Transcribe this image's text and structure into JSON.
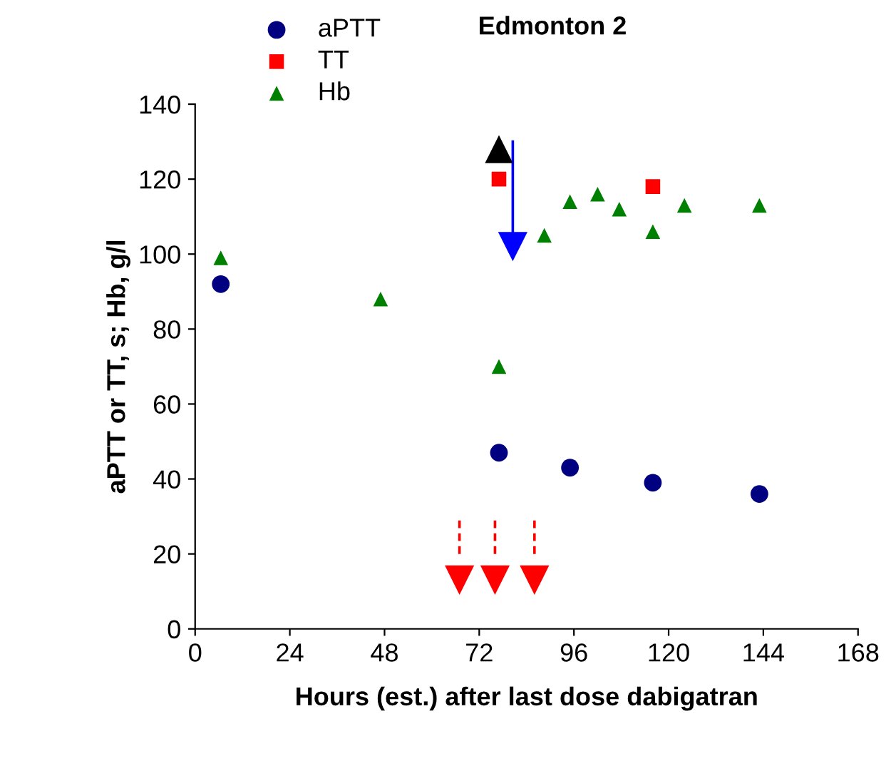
{
  "chart_data": {
    "type": "scatter",
    "title": "Edmonton 2",
    "xlabel": "Hours (est.) after last dose dabigatran",
    "ylabel": "aPTT or TT, s; Hb, g/l",
    "xlim": [
      0,
      168
    ],
    "xticks": [
      0,
      24,
      48,
      72,
      96,
      120,
      144,
      168
    ],
    "ylim": [
      0,
      140
    ],
    "yticks": [
      0,
      20,
      40,
      60,
      80,
      100,
      120,
      140
    ],
    "grid": false,
    "legend": "top left",
    "series": [
      {
        "name": "aPTT",
        "color": "#000080",
        "marker": "circle",
        "x": [
          6.5,
          77,
          95,
          116,
          143
        ],
        "values": [
          92,
          47,
          43,
          39,
          36
        ]
      },
      {
        "name": "TT",
        "color": "#ff0000",
        "marker": "square",
        "x": [
          77,
          116
        ],
        "values": [
          120,
          118
        ]
      },
      {
        "name": "Hb",
        "color": "#008000",
        "marker": "triangle",
        "x": [
          6.5,
          47,
          77,
          88.5,
          95,
          102,
          107.5,
          116,
          124,
          143
        ],
        "values": [
          99,
          88,
          70,
          105,
          114,
          116,
          112,
          106,
          113,
          113
        ]
      },
      {
        "color": "#000000",
        "marker": "triangle",
        "x": [
          77
        ],
        "values": [
          128
        ]
      },
      {
        "color": "#0000ff",
        "marker": "triangle_down",
        "x": [
          80.5
        ],
        "values": [
          102
        ],
        "errors": [
          [
            102,
            130
          ]
        ],
        "line_style": "solid"
      },
      {
        "color": "#ff0000",
        "marker": "triangle_down",
        "x": [
          67,
          76,
          86
        ],
        "values": [
          13,
          13,
          13
        ],
        "errors": [
          [
            20,
            30
          ],
          [
            20,
            30
          ],
          [
            20,
            30
          ]
        ],
        "line_style": "dashed"
      }
    ]
  }
}
